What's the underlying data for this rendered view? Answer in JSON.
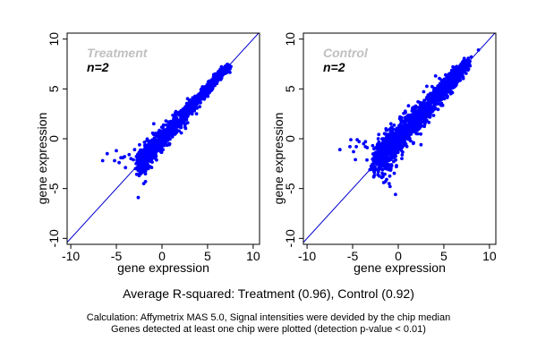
{
  "chart_data": [
    {
      "type": "scatter",
      "title": "Treatment",
      "annotation": "n=2",
      "xlabel": "gene expression",
      "ylabel": "gene expression",
      "xlim": [
        -10.4,
        10.7
      ],
      "ylim": [
        -10.6,
        10.6
      ],
      "xticks": [
        -10,
        -5,
        0,
        5,
        10
      ],
      "yticks": [
        -10,
        -5,
        0,
        5,
        10
      ],
      "grid": false,
      "reference_line": {
        "slope": 1,
        "intercept": 0,
        "color": "#0000cc"
      },
      "point_color": "#0000ff",
      "r_squared": 0.96,
      "cloud": {
        "x_range": [
          -2.4,
          7.3
        ],
        "spread": 0.55,
        "count": 1400,
        "seed": 7
      },
      "outliers": [
        [
          -6.5,
          -2.2
        ],
        [
          -6.0,
          -1.5
        ],
        [
          -5.2,
          -2.2
        ],
        [
          -5.0,
          -1.2
        ],
        [
          -4.7,
          -2.4
        ],
        [
          -4.5,
          -1.9
        ],
        [
          -4.3,
          -1.9
        ],
        [
          -4.1,
          -1.8
        ],
        [
          -4.0,
          -2.9
        ],
        [
          -3.6,
          -1.6
        ],
        [
          -3.4,
          -2.0
        ],
        [
          -2.5,
          -3.7
        ],
        [
          -2.2,
          -3.4
        ],
        [
          -2.0,
          -4.5
        ],
        [
          -1.8,
          -4.3
        ],
        [
          -2.6,
          -5.9
        ],
        [
          -1.5,
          -3.0
        ],
        [
          -0.9,
          1.5
        ],
        [
          -1.3,
          -2.8
        ],
        [
          -2.9,
          -3.0
        ],
        [
          -3.0,
          -1.1
        ],
        [
          -2.0,
          -3.0
        ]
      ]
    },
    {
      "type": "scatter",
      "title": "Control",
      "annotation": "n=2",
      "xlabel": "gene expression",
      "ylabel": "gene expression",
      "xlim": [
        -10.4,
        10.7
      ],
      "ylim": [
        -10.6,
        10.6
      ],
      "xticks": [
        -10,
        -5,
        0,
        5,
        10
      ],
      "yticks": [
        -10,
        -5,
        0,
        5,
        10
      ],
      "grid": false,
      "reference_line": {
        "slope": 1,
        "intercept": 0,
        "color": "#0000cc"
      },
      "point_color": "#0000ff",
      "r_squared": 0.92,
      "cloud": {
        "x_range": [
          -2.2,
          7.6
        ],
        "spread": 0.85,
        "count": 1600,
        "seed": 13
      },
      "outliers": [
        [
          -6.4,
          -1.1
        ],
        [
          -5.3,
          -0.8
        ],
        [
          -5.2,
          -0.1
        ],
        [
          -4.9,
          -1.3
        ],
        [
          -4.7,
          -2.1
        ],
        [
          -4.6,
          -0.8
        ],
        [
          -4.5,
          -0.1
        ],
        [
          -4.3,
          -0.3
        ],
        [
          -3.8,
          -0.5
        ],
        [
          -3.6,
          -0.8
        ],
        [
          -3.4,
          -0.9
        ],
        [
          -3.6,
          -0.3
        ],
        [
          -2.8,
          -0.7
        ],
        [
          -2.4,
          -1.7
        ],
        [
          -1.8,
          -3.9
        ],
        [
          -1.6,
          -4.4
        ],
        [
          -1.4,
          -4.3
        ],
        [
          -1.0,
          -4.5
        ],
        [
          -0.9,
          -4.8
        ],
        [
          -0.3,
          -5.6
        ],
        [
          -0.8,
          -3.0
        ],
        [
          -0.2,
          -2.8
        ],
        [
          0.7,
          1.2
        ],
        [
          -0.8,
          1.5
        ],
        [
          2.5,
          -0.6
        ],
        [
          4.1,
          6.3
        ],
        [
          7.3,
          7.8
        ],
        [
          8.8,
          8.9
        ],
        [
          8.0,
          8.2
        ]
      ]
    }
  ],
  "caption": {
    "main": "Average R-squared: Treatment (0.96), Control (0.92)",
    "line1": "Calculation: Affymetrix MAS 5.0, Signal intensities were devided by the chip median",
    "line2": "Genes detected at least one chip were plotted (detection p-value < 0.01)"
  }
}
